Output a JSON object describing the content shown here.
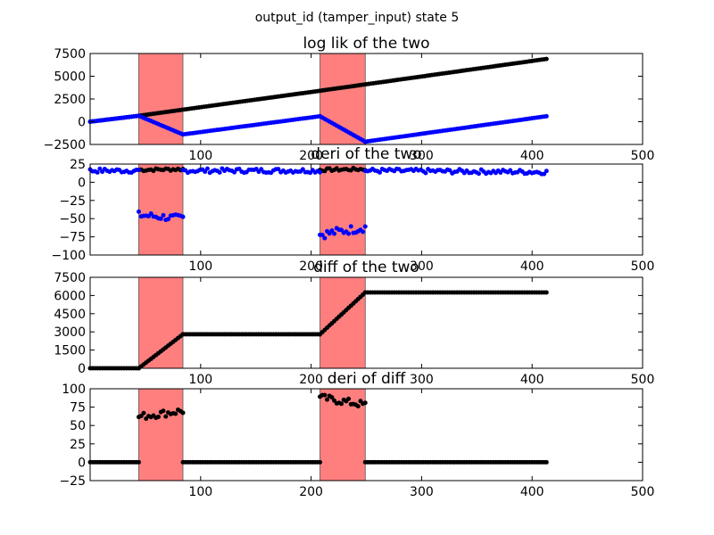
{
  "figure": {
    "suptitle": "output_id (tamper_input) state 5",
    "background": "#ffffff",
    "highlight_color": "#ff7f7f",
    "highlight_spans": [
      [
        44,
        84
      ],
      [
        208,
        249
      ]
    ]
  },
  "chart_data": [
    {
      "type": "scatter",
      "title": "log lik of the two",
      "xlim": [
        0,
        500
      ],
      "ylim": [
        -2500,
        7500
      ],
      "xticks": [
        "100",
        "200",
        "300",
        "400",
        "500"
      ],
      "yticks": [
        "7500",
        "5000",
        "2500",
        "0",
        "−2500"
      ],
      "series": [
        {
          "color": "#000000",
          "segments": [
            {
              "x": [
                0,
                44
              ],
              "y": [
                0,
                650
              ]
            },
            {
              "x": [
                44,
                208
              ],
              "y": [
                650,
                3400
              ]
            },
            {
              "x": [
                208,
                413
              ],
              "y": [
                3400,
                6900
              ]
            }
          ]
        },
        {
          "color": "#0000ff",
          "segments": [
            {
              "x": [
                0,
                44
              ],
              "y": [
                0,
                650
              ]
            },
            {
              "x": [
                44,
                84
              ],
              "y": [
                650,
                -1400
              ]
            },
            {
              "x": [
                84,
                208
              ],
              "y": [
                -1400,
                600
              ]
            },
            {
              "x": [
                208,
                249
              ],
              "y": [
                600,
                -2200
              ]
            },
            {
              "x": [
                249,
                413
              ],
              "y": [
                -2200,
                600
              ]
            }
          ]
        }
      ]
    },
    {
      "type": "scatter",
      "title": "deri of the two",
      "xlim": [
        0,
        500
      ],
      "ylim": [
        -100,
        25
      ],
      "xticks": [
        "100",
        "200",
        "300",
        "400",
        "500"
      ],
      "yticks": [
        "25",
        "0",
        "−25",
        "−50",
        "−75",
        "−100"
      ],
      "series": [
        {
          "color": "#000000",
          "segments": [
            {
              "x": [
                44,
                84
              ],
              "y": [
                17,
                18
              ],
              "noise": 2
            },
            {
              "x": [
                208,
                249
              ],
              "y": [
                17,
                18
              ],
              "noise": 2
            }
          ]
        },
        {
          "color": "#0000ff",
          "segments": [
            {
              "x": [
                0,
                44
              ],
              "y": [
                16,
                16
              ],
              "noise": 3
            },
            {
              "x": [
                44,
                84
              ],
              "y": [
                -45,
                -50
              ],
              "noise": 5
            },
            {
              "x": [
                84,
                208
              ],
              "y": [
                16,
                16
              ],
              "noise": 3
            },
            {
              "x": [
                208,
                249
              ],
              "y": [
                -72,
                -62
              ],
              "noise": 6
            },
            {
              "x": [
                249,
                413
              ],
              "y": [
                16,
                14
              ],
              "noise": 3
            }
          ]
        }
      ]
    },
    {
      "type": "scatter",
      "title": "diff of the two",
      "xlim": [
        0,
        500
      ],
      "ylim": [
        0,
        7500
      ],
      "xticks": [
        "100",
        "200",
        "300",
        "400",
        "500"
      ],
      "yticks": [
        "7500",
        "6000",
        "4500",
        "3000",
        "1500",
        "0"
      ],
      "series": [
        {
          "color": "#000000",
          "segments": [
            {
              "x": [
                0,
                44
              ],
              "y": [
                0,
                0
              ]
            },
            {
              "x": [
                44,
                84
              ],
              "y": [
                0,
                2800
              ]
            },
            {
              "x": [
                84,
                208
              ],
              "y": [
                2800,
                2800
              ]
            },
            {
              "x": [
                208,
                249
              ],
              "y": [
                2800,
                6250
              ]
            },
            {
              "x": [
                249,
                413
              ],
              "y": [
                6250,
                6250
              ]
            }
          ]
        }
      ]
    },
    {
      "type": "scatter",
      "title": "deri of diff",
      "xlim": [
        0,
        500
      ],
      "ylim": [
        -25,
        100
      ],
      "xticks": [
        "100",
        "200",
        "300",
        "400",
        "500"
      ],
      "yticks": [
        "100",
        "75",
        "50",
        "25",
        "0",
        "−25"
      ],
      "series": [
        {
          "color": "#000000",
          "segments": [
            {
              "x": [
                0,
                44
              ],
              "y": [
                0,
                0
              ]
            },
            {
              "x": [
                44,
                84
              ],
              "y": [
                62,
                70
              ],
              "noise": 5
            },
            {
              "x": [
                84,
                208
              ],
              "y": [
                0,
                0
              ]
            },
            {
              "x": [
                208,
                249
              ],
              "y": [
                88,
                78
              ],
              "noise": 5
            },
            {
              "x": [
                249,
                413
              ],
              "y": [
                0,
                0
              ]
            }
          ]
        }
      ]
    }
  ]
}
